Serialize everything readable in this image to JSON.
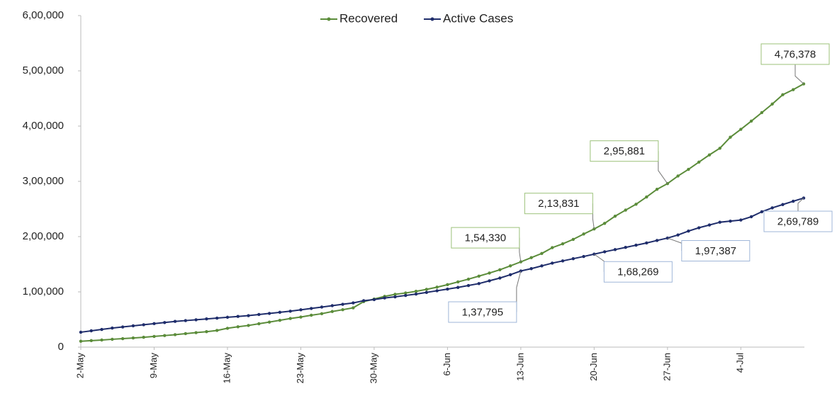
{
  "chart_data": {
    "type": "line",
    "categories": [
      "2-May",
      null,
      null,
      null,
      null,
      null,
      null,
      "9-May",
      null,
      null,
      null,
      null,
      null,
      null,
      "16-May",
      null,
      null,
      null,
      null,
      null,
      null,
      "23-May",
      null,
      null,
      null,
      null,
      null,
      null,
      "30-May",
      null,
      null,
      null,
      null,
      null,
      null,
      "6-Jun",
      null,
      null,
      null,
      null,
      null,
      null,
      "13-Jun",
      null,
      null,
      null,
      null,
      null,
      null,
      "20-Jun",
      null,
      null,
      null,
      null,
      null,
      null,
      "27-Jun",
      null,
      null,
      null,
      null,
      null,
      null,
      "4-Jul",
      null,
      null,
      null,
      null,
      null,
      null
    ],
    "series": [
      {
        "name": "Recovered",
        "color": "#5b8c3a",
        "values": [
          10633,
          11762,
          12847,
          14183,
          15331,
          16540,
          17847,
          19358,
          20917,
          22455,
          24386,
          26235,
          27920,
          30153,
          34109,
          36824,
          39174,
          42298,
          45300,
          48534,
          51784,
          54441,
          57721,
          60491,
          64426,
          67692,
          71106,
          82370,
          86984,
          91819,
          95527,
          98000,
          101000,
          104500,
          108500,
          113000,
          118000,
          123000,
          128500,
          134000,
          140000,
          147000,
          154330,
          162000,
          169500,
          180000,
          187000,
          195000,
          204700,
          213831,
          224000,
          237000,
          248000,
          258600,
          271700,
          285600,
          295881,
          309700,
          321700,
          334800,
          347900,
          359900,
          379900,
          394200,
          409100,
          424400,
          439900,
          456800,
          466000,
          476378
        ],
        "value_labels": [
          null,
          null,
          null,
          null,
          null,
          null,
          null,
          null,
          null,
          null,
          null,
          null,
          null,
          null,
          null,
          null,
          null,
          null,
          null,
          null,
          null,
          null,
          null,
          null,
          null,
          null,
          null,
          null,
          null,
          null,
          null,
          null,
          null,
          null,
          null,
          null,
          null,
          null,
          null,
          null,
          null,
          null,
          "1,54,330",
          null,
          null,
          null,
          null,
          null,
          null,
          "2,13,831",
          null,
          null,
          null,
          null,
          null,
          null,
          "2,95,881",
          null,
          null,
          null,
          null,
          null,
          null,
          null,
          null,
          null,
          null,
          null,
          null,
          "4,76,378"
        ]
      },
      {
        "name": "Active Cases",
        "color": "#1f2d6b",
        "values": [
          27000,
          29500,
          32000,
          34500,
          36500,
          38500,
          40500,
          42500,
          44500,
          46500,
          48000,
          49500,
          51000,
          52500,
          54000,
          55500,
          57000,
          59000,
          61000,
          63000,
          65000,
          67500,
          70000,
          72500,
          75000,
          77500,
          80000,
          84000,
          86000,
          89000,
          91000,
          93500,
          96000,
          99000,
          102000,
          105000,
          108000,
          111500,
          115000,
          120000,
          125000,
          131000,
          137795,
          142000,
          147000,
          152000,
          156000,
          160000,
          164000,
          168269,
          172500,
          176500,
          180500,
          184500,
          188500,
          193000,
          197387,
          203000,
          210000,
          216000,
          221000,
          226000,
          228000,
          230000,
          236000,
          245000,
          252000,
          258000,
          264000,
          269789
        ],
        "value_labels": [
          null,
          null,
          null,
          null,
          null,
          null,
          null,
          null,
          null,
          null,
          null,
          null,
          null,
          null,
          null,
          null,
          null,
          null,
          null,
          null,
          null,
          null,
          null,
          null,
          null,
          null,
          null,
          null,
          null,
          null,
          null,
          null,
          null,
          null,
          null,
          null,
          null,
          null,
          null,
          null,
          null,
          null,
          "1,37,795",
          null,
          null,
          null,
          null,
          null,
          null,
          "1,68,269",
          null,
          null,
          null,
          null,
          null,
          null,
          "1,97,387",
          null,
          null,
          null,
          null,
          null,
          null,
          null,
          null,
          null,
          null,
          null,
          null,
          "2,69,789"
        ]
      }
    ],
    "ylim": [
      0,
      600000
    ],
    "yticks": [
      0,
      {
        "value": 100000,
        "label": "1,00,000"
      },
      {
        "value": 200000,
        "label": "2,00,000"
      },
      {
        "value": 300000,
        "label": "3,00,000"
      },
      {
        "value": 400000,
        "label": "4,00,000"
      },
      {
        "value": 500000,
        "label": "5,00,000"
      },
      {
        "value": 600000,
        "label": "6,00,000"
      }
    ],
    "legend": "top"
  }
}
